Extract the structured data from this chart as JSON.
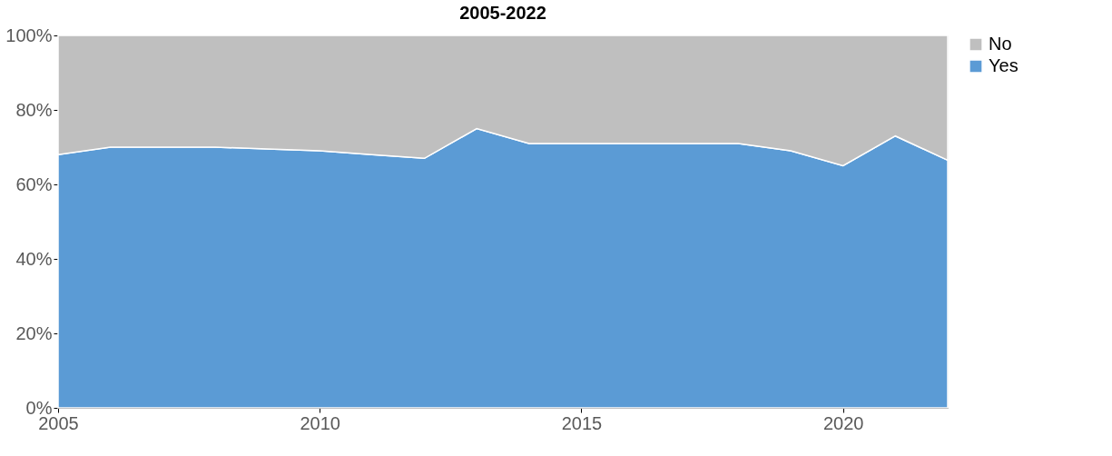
{
  "chart_data": {
    "type": "area",
    "title": "2005-2022",
    "stacked": true,
    "x": [
      2005,
      2006,
      2007,
      2008,
      2009,
      2010,
      2011,
      2012,
      2013,
      2014,
      2015,
      2016,
      2017,
      2018,
      2019,
      2020,
      2021,
      2022
    ],
    "series": [
      {
        "name": "Yes",
        "color": "#5b9bd5",
        "values": [
          68,
          70,
          70,
          70,
          69.5,
          69,
          68,
          67,
          75,
          71,
          71,
          71,
          71,
          71,
          69,
          65,
          73,
          66.5
        ]
      },
      {
        "name": "No",
        "color": "#bfbfbf",
        "values": [
          32,
          30,
          30,
          30,
          30.5,
          31,
          32,
          33,
          25,
          29,
          29,
          29,
          29,
          29,
          31,
          35,
          27,
          33.5
        ]
      }
    ],
    "xlim": [
      2005,
      2022
    ],
    "xticks": [
      2005,
      2010,
      2015,
      2020
    ],
    "ylim": [
      0,
      100
    ],
    "yticks": [
      {
        "value": 0,
        "label": "0%"
      },
      {
        "value": 20,
        "label": "20%"
      },
      {
        "value": 40,
        "label": "40%"
      },
      {
        "value": 60,
        "label": "60%"
      },
      {
        "value": 80,
        "label": "80%"
      },
      {
        "value": 100,
        "label": "100%"
      }
    ],
    "legend": "right"
  }
}
